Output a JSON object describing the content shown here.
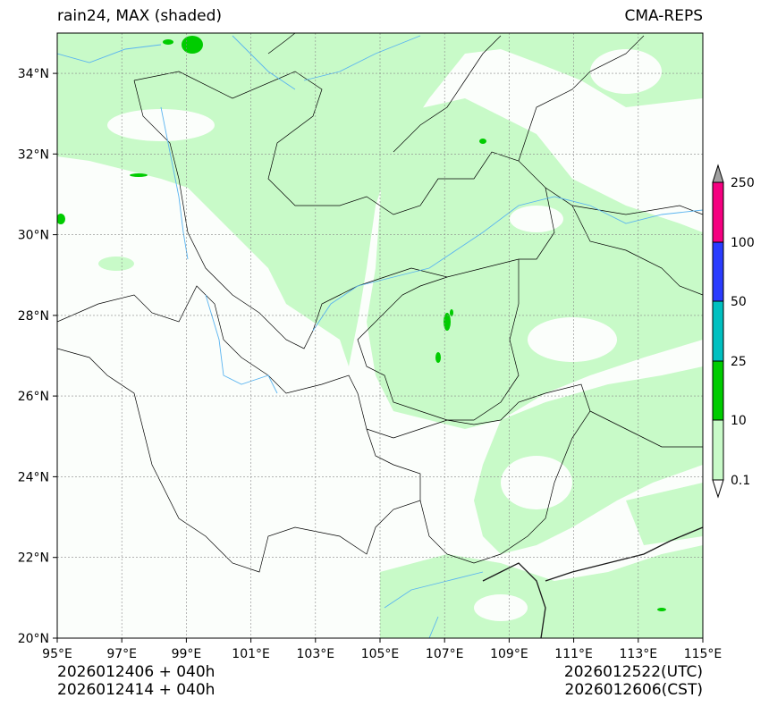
{
  "header": {
    "left_title": "rain24, MAX (shaded)",
    "right_title": "CMA-REPS"
  },
  "axes": {
    "x_ticks": [
      "95°E",
      "97°E",
      "99°E",
      "101°E",
      "103°E",
      "105°E",
      "107°E",
      "109°E",
      "111°E",
      "113°E",
      "115°E"
    ],
    "y_ticks": [
      "20°N",
      "22°N",
      "24°N",
      "26°N",
      "28°N",
      "30°N",
      "32°N",
      "34°N"
    ],
    "lon_range": [
      95,
      115
    ],
    "lat_range": [
      20,
      35
    ]
  },
  "colorbar": {
    "levels": [
      "0.1",
      "10",
      "25",
      "50",
      "100",
      "250"
    ],
    "colors": [
      "#c8fac8",
      "#00cc00",
      "#00c0c0",
      "#2a3cff",
      "#f50080"
    ],
    "over_color": "#a0a0a0",
    "under_color": "#ffffff"
  },
  "footer": {
    "left_line1": "2026012406  +  040h",
    "left_line2": "2026012414  +  040h",
    "right_line1": "2026012522(UTC)",
    "right_line2": "2026012606(CST)"
  },
  "colors": {
    "light_rain": "#c8fac8",
    "moderate_rain": "#00cc00",
    "river": "#5ab4f0",
    "border": "#000000",
    "grid": "#888888"
  }
}
